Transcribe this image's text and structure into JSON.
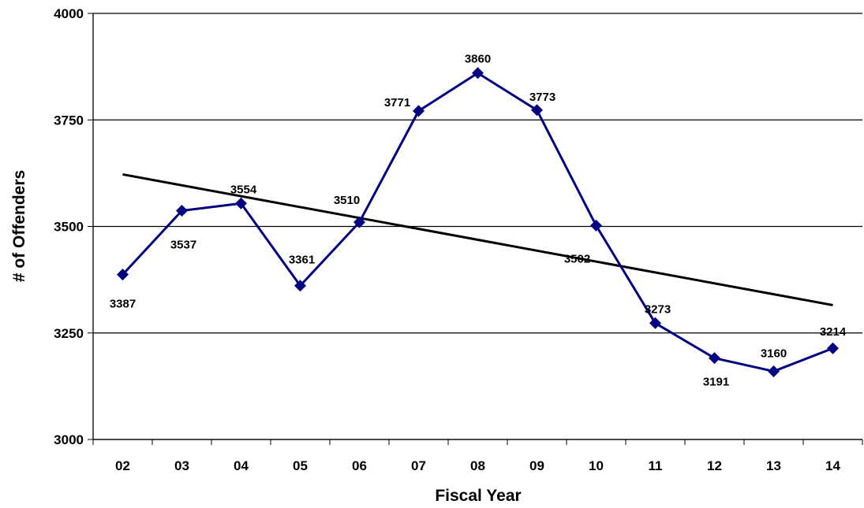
{
  "chart_data": {
    "type": "line",
    "title": "",
    "xlabel": "Fiscal Year",
    "ylabel": "# of Offenders",
    "categories": [
      "02",
      "03",
      "04",
      "05",
      "06",
      "07",
      "08",
      "09",
      "10",
      "11",
      "12",
      "13",
      "14"
    ],
    "ylim": [
      3000,
      4000
    ],
    "yticks": [
      "3000",
      "3250",
      "3500",
      "3750",
      "4000"
    ],
    "series": [
      {
        "values": [
          3387,
          3537,
          3554,
          3361,
          3510,
          3771,
          3860,
          3773,
          3502,
          3273,
          3191,
          3160,
          3214
        ],
        "labels": [
          "3387",
          "3537",
          "3554",
          "3361",
          "3510",
          "3771",
          "3860",
          "3773",
          "3502",
          "3273",
          "3191",
          "3160",
          "3214"
        ],
        "color": "#000080",
        "marker": "diamond"
      }
    ],
    "trendline": {
      "type": "linear",
      "color": "#000000"
    },
    "grid": {
      "horizontal": true,
      "vertical": false
    },
    "legend": "none"
  }
}
